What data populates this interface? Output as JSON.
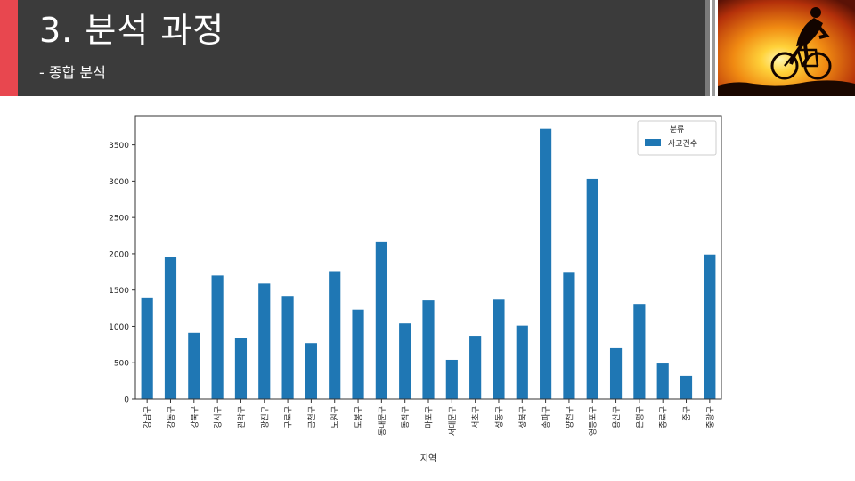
{
  "slide": {
    "title": "3. 분석 과정",
    "subtitle": "- 종합 분석",
    "photo_icon": "cyclist-sunset-photo",
    "colors": {
      "accent_red": "#e8474f",
      "header_bg": "#3b3b3b",
      "bar": "#1f77b4"
    }
  },
  "chart_data": {
    "type": "bar",
    "xlabel": "지역",
    "ylabel": "",
    "ylim": [
      0,
      3900
    ],
    "yticks": [
      0,
      500,
      1000,
      1500,
      2000,
      2500,
      3000,
      3500
    ],
    "grid": false,
    "legend": {
      "title": "분류",
      "placement": "top-right"
    },
    "categories": [
      "강남구",
      "강동구",
      "강북구",
      "강서구",
      "관악구",
      "광진구",
      "구로구",
      "금천구",
      "노원구",
      "도봉구",
      "동대문구",
      "동작구",
      "마포구",
      "서대문구",
      "서초구",
      "성동구",
      "성북구",
      "송파구",
      "양천구",
      "영등포구",
      "용산구",
      "은평구",
      "종로구",
      "중구",
      "중랑구"
    ],
    "series": [
      {
        "name": "사고건수",
        "color": "#1f77b4",
        "values": [
          1400,
          1950,
          910,
          1700,
          840,
          1590,
          1420,
          770,
          1760,
          1230,
          2160,
          1040,
          1360,
          540,
          870,
          1370,
          1010,
          3720,
          1750,
          3030,
          700,
          1310,
          490,
          320,
          1990
        ]
      }
    ]
  }
}
